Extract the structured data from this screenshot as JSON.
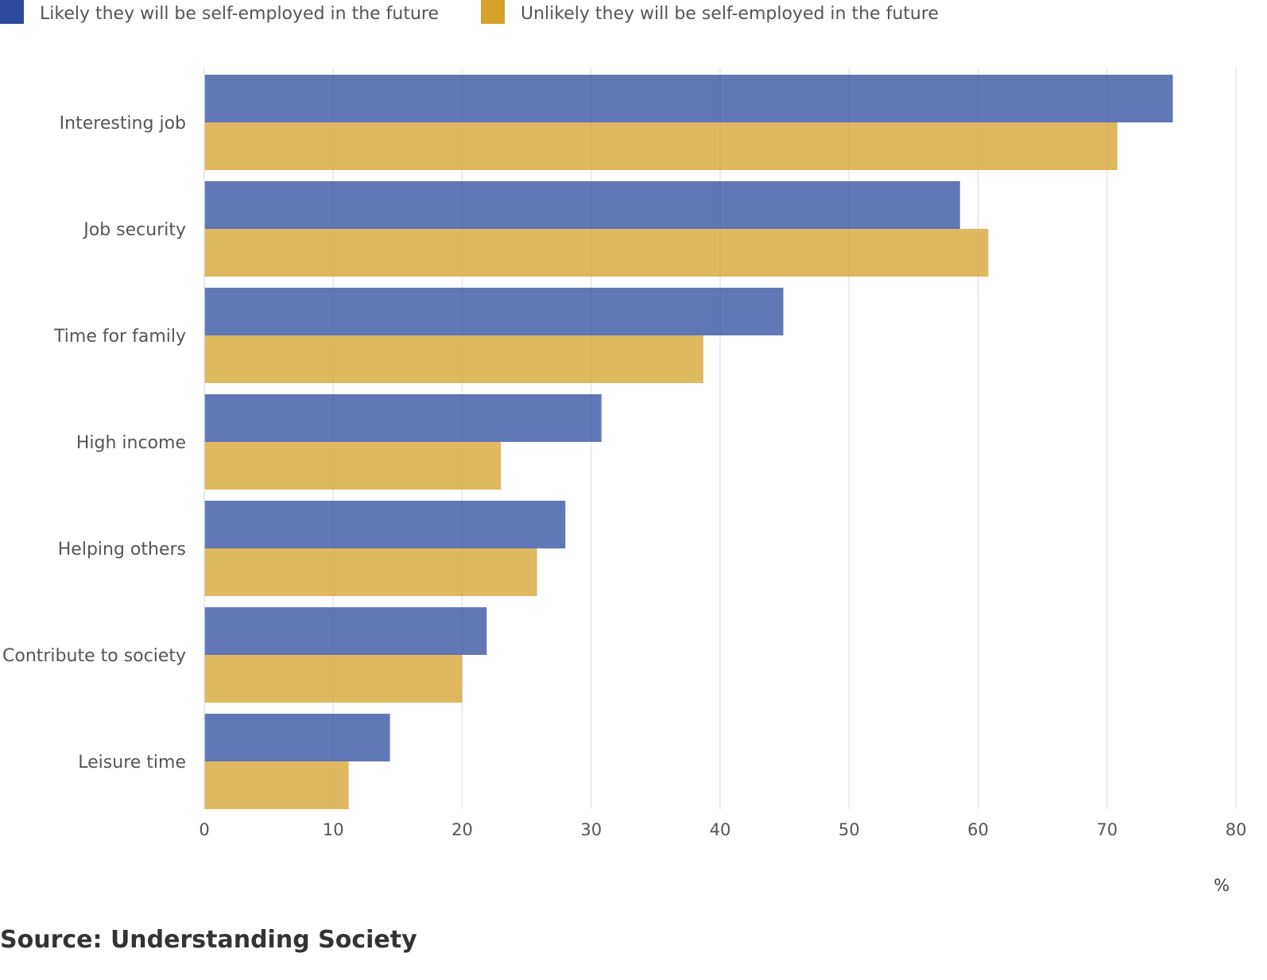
{
  "legend": {
    "likely_label": "Likely they will be self-employed in the future",
    "unlikely_label": "Unlikely they will be self-employed in the future"
  },
  "source": "Source: Understanding Society",
  "chart_data": {
    "type": "bar",
    "orientation": "horizontal",
    "categories": [
      "Interesting job",
      "Job security",
      "Time for family",
      "High income",
      "Helping others",
      "Contribute to society",
      "Leisure time"
    ],
    "series": [
      {
        "name": "Likely they will be self-employed in the future",
        "color": "#2e4a9e",
        "values": [
          75.1,
          58.6,
          44.9,
          30.8,
          28.0,
          21.9,
          14.4
        ]
      },
      {
        "name": "Unlikely they will be self-employed in the future",
        "color": "#d4a12b",
        "values": [
          70.8,
          60.8,
          38.7,
          23.0,
          25.8,
          20.0,
          11.2
        ]
      }
    ],
    "xlabel": "%",
    "ylabel": "",
    "xlim": [
      0,
      80
    ],
    "xticks": [
      0,
      10,
      20,
      30,
      40,
      50,
      60,
      70,
      80
    ],
    "grid": true,
    "legend_position": "top-left",
    "bar_opacity": 0.75
  }
}
